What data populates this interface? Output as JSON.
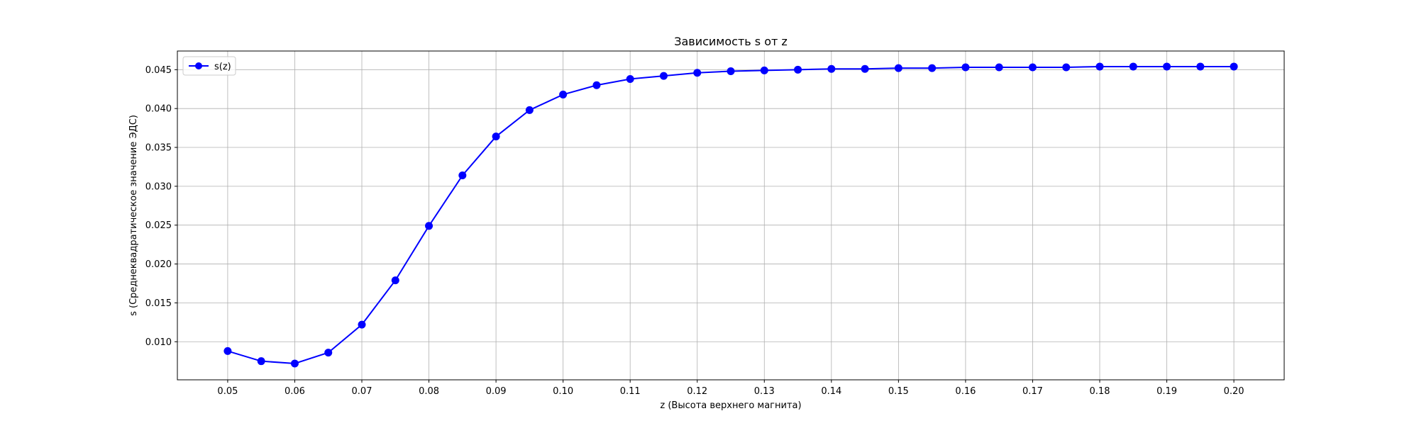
{
  "chart_data": {
    "type": "line",
    "title": "Зависимость s от z",
    "xlabel": "z (Высота верхнего магнита)",
    "ylabel": "s (Среднеквадратическое значение ЭДС)",
    "xlim": [
      0.0425,
      0.2075
    ],
    "ylim": [
      0.0051,
      0.0474
    ],
    "xticks": [
      0.05,
      0.06,
      0.07,
      0.08,
      0.09,
      0.1,
      0.11,
      0.12,
      0.13,
      0.14,
      0.15,
      0.16,
      0.17,
      0.18,
      0.19,
      0.2
    ],
    "xtick_labels": [
      "0.05",
      "0.06",
      "0.07",
      "0.08",
      "0.09",
      "0.10",
      "0.11",
      "0.12",
      "0.13",
      "0.14",
      "0.15",
      "0.16",
      "0.17",
      "0.18",
      "0.19",
      "0.20"
    ],
    "yticks": [
      0.01,
      0.015,
      0.02,
      0.025,
      0.03,
      0.035,
      0.04,
      0.045
    ],
    "ytick_labels": [
      "0.010",
      "0.015",
      "0.020",
      "0.025",
      "0.030",
      "0.035",
      "0.040",
      "0.045"
    ],
    "grid": true,
    "legend_position": "upper-left",
    "series": [
      {
        "name": "s(z)",
        "color": "#0000ff",
        "marker": "circle",
        "x": [
          0.05,
          0.055,
          0.06,
          0.065,
          0.07,
          0.075,
          0.08,
          0.085,
          0.09,
          0.095,
          0.1,
          0.105,
          0.11,
          0.115,
          0.12,
          0.125,
          0.13,
          0.135,
          0.14,
          0.145,
          0.15,
          0.155,
          0.16,
          0.165,
          0.17,
          0.175,
          0.18,
          0.185,
          0.19,
          0.195,
          0.2
        ],
        "y": [
          0.0088,
          0.0075,
          0.0072,
          0.0086,
          0.0122,
          0.0179,
          0.0249,
          0.0314,
          0.0364,
          0.0398,
          0.0418,
          0.043,
          0.0438,
          0.0442,
          0.0446,
          0.0448,
          0.0449,
          0.045,
          0.0451,
          0.0451,
          0.0452,
          0.0452,
          0.0453,
          0.0453,
          0.0453,
          0.0453,
          0.0454,
          0.0454,
          0.0454,
          0.0454,
          0.0454
        ]
      }
    ]
  }
}
